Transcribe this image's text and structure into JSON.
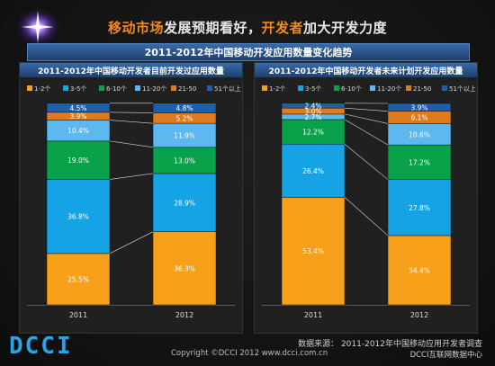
{
  "header": {
    "title_parts": [
      {
        "text": "移动市场",
        "color": "orange"
      },
      {
        "text": "发展预期看好，",
        "color": "white"
      },
      {
        "text": "开发者",
        "color": "orange"
      },
      {
        "text": "加大开发力度",
        "color": "white"
      }
    ],
    "subtitle": "2011-2012年中国移动开发应用数量变化趋势"
  },
  "footer": {
    "logo": "DCCI",
    "source": "数据来源： 2011-2012年中国移动应用开发者调查",
    "copyright": "Copyright ©DCCI 2012 www.dcci.com.cn",
    "company": "DCCI互联网数据中心"
  },
  "colors": {
    "orange": "#f6a01a",
    "deep_blue": "#15a3e6",
    "green": "#0aa14b",
    "light_blue": "#5cb8ee",
    "dark_orange": "#e07a1e",
    "navy": "#1f5ea8"
  },
  "chart_data": [
    {
      "type": "bar",
      "stacked": true,
      "normalized": true,
      "title": "2011-2012年中国移动开发者目前开发过应用数量",
      "categories": [
        "2011",
        "2012"
      ],
      "legend_position": "top",
      "series": [
        {
          "name": "1-2个",
          "color": "#f6a01a",
          "values": [
            25.5,
            36.3
          ]
        },
        {
          "name": "3-5个",
          "color": "#15a3e6",
          "values": [
            36.8,
            28.9
          ]
        },
        {
          "name": "6-10个",
          "color": "#0aa14b",
          "values": [
            19.0,
            13.0
          ]
        },
        {
          "name": "11-20个",
          "color": "#5cb8ee",
          "values": [
            10.4,
            11.9
          ]
        },
        {
          "name": "21-50",
          "color": "#e07a1e",
          "values": [
            3.9,
            5.2
          ]
        },
        {
          "name": "51个以上",
          "color": "#1f5ea8",
          "values": [
            4.5,
            4.8
          ]
        }
      ],
      "ylim": [
        0,
        100
      ]
    },
    {
      "type": "bar",
      "stacked": true,
      "normalized": true,
      "title": "2011-2012年中国移动开发者未来计划开发应用数量",
      "categories": [
        "2011",
        "2012"
      ],
      "legend_position": "top",
      "series": [
        {
          "name": "1-2个",
          "color": "#f6a01a",
          "values": [
            53.4,
            34.4
          ]
        },
        {
          "name": "3-5个",
          "color": "#15a3e6",
          "values": [
            26.4,
            27.8
          ]
        },
        {
          "name": "6-10个",
          "color": "#0aa14b",
          "values": [
            12.2,
            17.2
          ]
        },
        {
          "name": "11-20个",
          "color": "#5cb8ee",
          "values": [
            2.7,
            10.6
          ]
        },
        {
          "name": "21-50",
          "color": "#e07a1e",
          "values": [
            3.0,
            6.1
          ]
        },
        {
          "name": "51个以上",
          "color": "#1f5ea8",
          "values": [
            2.4,
            3.9
          ]
        }
      ],
      "ylim": [
        0,
        100
      ]
    }
  ]
}
